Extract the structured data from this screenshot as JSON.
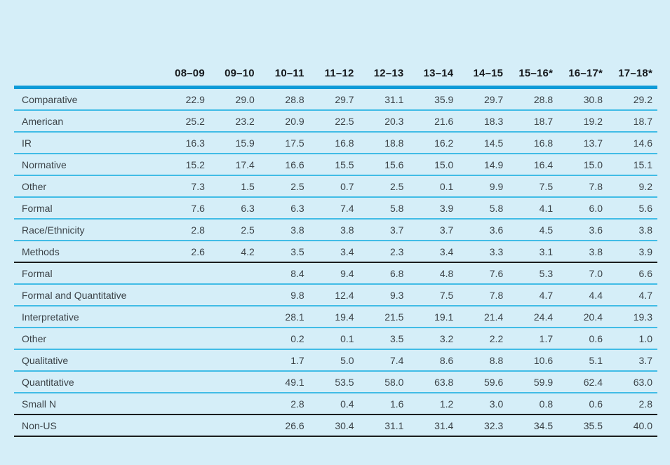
{
  "colors": {
    "background": "#d5eef8",
    "header_rule": "#0e9bd8",
    "row_rule": "#41bce6",
    "section_rule": "#1a1d1f",
    "header_text": "#16191d",
    "body_text": "#3c4348"
  },
  "chart_data": {
    "type": "table",
    "title": "",
    "columns": [
      "08–09",
      "09–10",
      "10–11",
      "11–12",
      "12–13",
      "13–14",
      "14–15",
      "15–16*",
      "16–17*",
      "17–18*"
    ],
    "sections": [
      {
        "rows": [
          {
            "label": "Comparative",
            "values": [
              "22.9",
              "29.0",
              "28.8",
              "29.7",
              "31.1",
              "35.9",
              "29.7",
              "28.8",
              "30.8",
              "29.2"
            ]
          },
          {
            "label": "American",
            "values": [
              "25.2",
              "23.2",
              "20.9",
              "22.5",
              "20.3",
              "21.6",
              "18.3",
              "18.7",
              "19.2",
              "18.7"
            ]
          },
          {
            "label": "IR",
            "values": [
              "16.3",
              "15.9",
              "17.5",
              "16.8",
              "18.8",
              "16.2",
              "14.5",
              "16.8",
              "13.7",
              "14.6"
            ]
          },
          {
            "label": "Normative",
            "values": [
              "15.2",
              "17.4",
              "16.6",
              "15.5",
              "15.6",
              "15.0",
              "14.9",
              "16.4",
              "15.0",
              "15.1"
            ]
          },
          {
            "label": "Other",
            "values": [
              "7.3",
              "1.5",
              "2.5",
              "0.7",
              "2.5",
              "0.1",
              "9.9",
              "7.5",
              "7.8",
              "9.2"
            ]
          },
          {
            "label": "Formal",
            "values": [
              "7.6",
              "6.3",
              "6.3",
              "7.4",
              "5.8",
              "3.9",
              "5.8",
              "4.1",
              "6.0",
              "5.6"
            ]
          },
          {
            "label": "Race/Ethnicity",
            "values": [
              "2.8",
              "2.5",
              "3.8",
              "3.8",
              "3.7",
              "3.7",
              "3.6",
              "4.5",
              "3.6",
              "3.8"
            ]
          },
          {
            "label": "Methods",
            "values": [
              "2.6",
              "4.2",
              "3.5",
              "3.4",
              "2.3",
              "3.4",
              "3.3",
              "3.1",
              "3.8",
              "3.9"
            ]
          }
        ]
      },
      {
        "rows": [
          {
            "label": "Formal",
            "values": [
              "",
              "",
              "8.4",
              "9.4",
              "6.8",
              "4.8",
              "7.6",
              "5.3",
              "7.0",
              "6.6"
            ]
          },
          {
            "label": "Formal and Quantitative",
            "values": [
              "",
              "",
              "9.8",
              "12.4",
              "9.3",
              "7.5",
              "7.8",
              "4.7",
              "4.4",
              "4.7"
            ]
          },
          {
            "label": "Interpretative",
            "values": [
              "",
              "",
              "28.1",
              "19.4",
              "21.5",
              "19.1",
              "21.4",
              "24.4",
              "20.4",
              "19.3"
            ]
          },
          {
            "label": "Other",
            "values": [
              "",
              "",
              "0.2",
              "0.1",
              "3.5",
              "3.2",
              "2.2",
              "1.7",
              "0.6",
              "1.0"
            ]
          },
          {
            "label": "Qualitative",
            "values": [
              "",
              "",
              "1.7",
              "5.0",
              "7.4",
              "8.6",
              "8.8",
              "10.6",
              "5.1",
              "3.7"
            ]
          },
          {
            "label": "Quantitative",
            "values": [
              "",
              "",
              "49.1",
              "53.5",
              "58.0",
              "63.8",
              "59.6",
              "59.9",
              "62.4",
              "63.0"
            ]
          },
          {
            "label": "Small N",
            "values": [
              "",
              "",
              "2.8",
              "0.4",
              "1.6",
              "1.2",
              "3.0",
              "0.8",
              "0.6",
              "2.8"
            ]
          }
        ]
      },
      {
        "rows": [
          {
            "label": "Non-US",
            "values": [
              "",
              "",
              "26.6",
              "30.4",
              "31.1",
              "31.4",
              "32.3",
              "34.5",
              "35.5",
              "40.0"
            ]
          }
        ]
      }
    ]
  }
}
